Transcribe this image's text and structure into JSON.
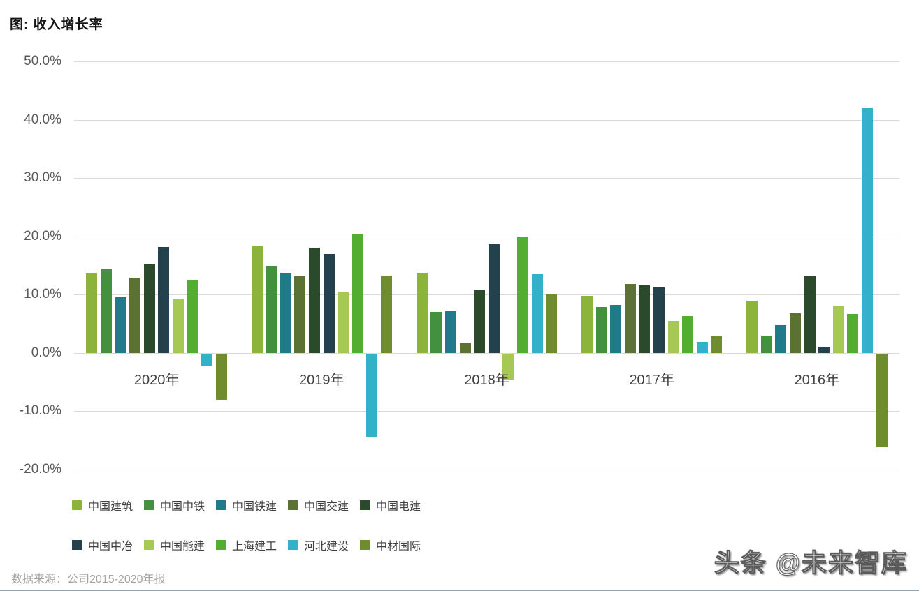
{
  "title": "图: 收入增长率",
  "source": "数据来源：公司2015-2020年报",
  "watermark": "头条 @未来智库",
  "chart_data": {
    "type": "bar",
    "title": "图: 收入增长率",
    "categories": [
      "2020年",
      "2019年",
      "2018年",
      "2017年",
      "2016年"
    ],
    "series": [
      {
        "name": "中国建筑",
        "color": "#8cb43a",
        "values": [
          13.7,
          18.4,
          13.8,
          9.8,
          9.0
        ]
      },
      {
        "name": "中国中铁",
        "color": "#43913e",
        "values": [
          14.5,
          15.0,
          7.0,
          7.9,
          3.0
        ]
      },
      {
        "name": "中国铁建",
        "color": "#21798c",
        "values": [
          9.6,
          13.7,
          7.2,
          8.2,
          4.8
        ]
      },
      {
        "name": "中国交建",
        "color": "#5b7234",
        "values": [
          12.9,
          13.1,
          1.6,
          11.8,
          6.8
        ]
      },
      {
        "name": "中国电建",
        "color": "#2b4a2c",
        "values": [
          15.3,
          18.1,
          10.7,
          11.6,
          13.2
        ]
      },
      {
        "name": "中国中冶",
        "color": "#24424e",
        "values": [
          18.2,
          17.0,
          18.7,
          11.2,
          1.1
        ]
      },
      {
        "name": "中国能建",
        "color": "#a6c953",
        "values": [
          9.3,
          10.4,
          -4.4,
          5.5,
          8.1
        ]
      },
      {
        "name": "上海建工",
        "color": "#53ad30",
        "values": [
          12.5,
          20.5,
          20.0,
          6.3,
          6.7
        ]
      },
      {
        "name": "河北建设",
        "color": "#32b2c8",
        "values": [
          -2.2,
          -14.3,
          13.6,
          1.9,
          42.0
        ]
      },
      {
        "name": "中材国际",
        "color": "#6f8d2e",
        "values": [
          -7.9,
          13.3,
          10.0,
          2.9,
          -16.0
        ]
      }
    ],
    "ylim": [
      -20,
      50
    ],
    "ytick_step": 10,
    "y_tick_labels": [
      "50.0%",
      "40.0%",
      "30.0%",
      "20.0%",
      "10.0%",
      "0.0%",
      "-10.0%",
      "-20.0%"
    ],
    "xlabel": "",
    "ylabel": "",
    "grid": true,
    "legend_position": "bottom",
    "legend_rows": 2
  }
}
